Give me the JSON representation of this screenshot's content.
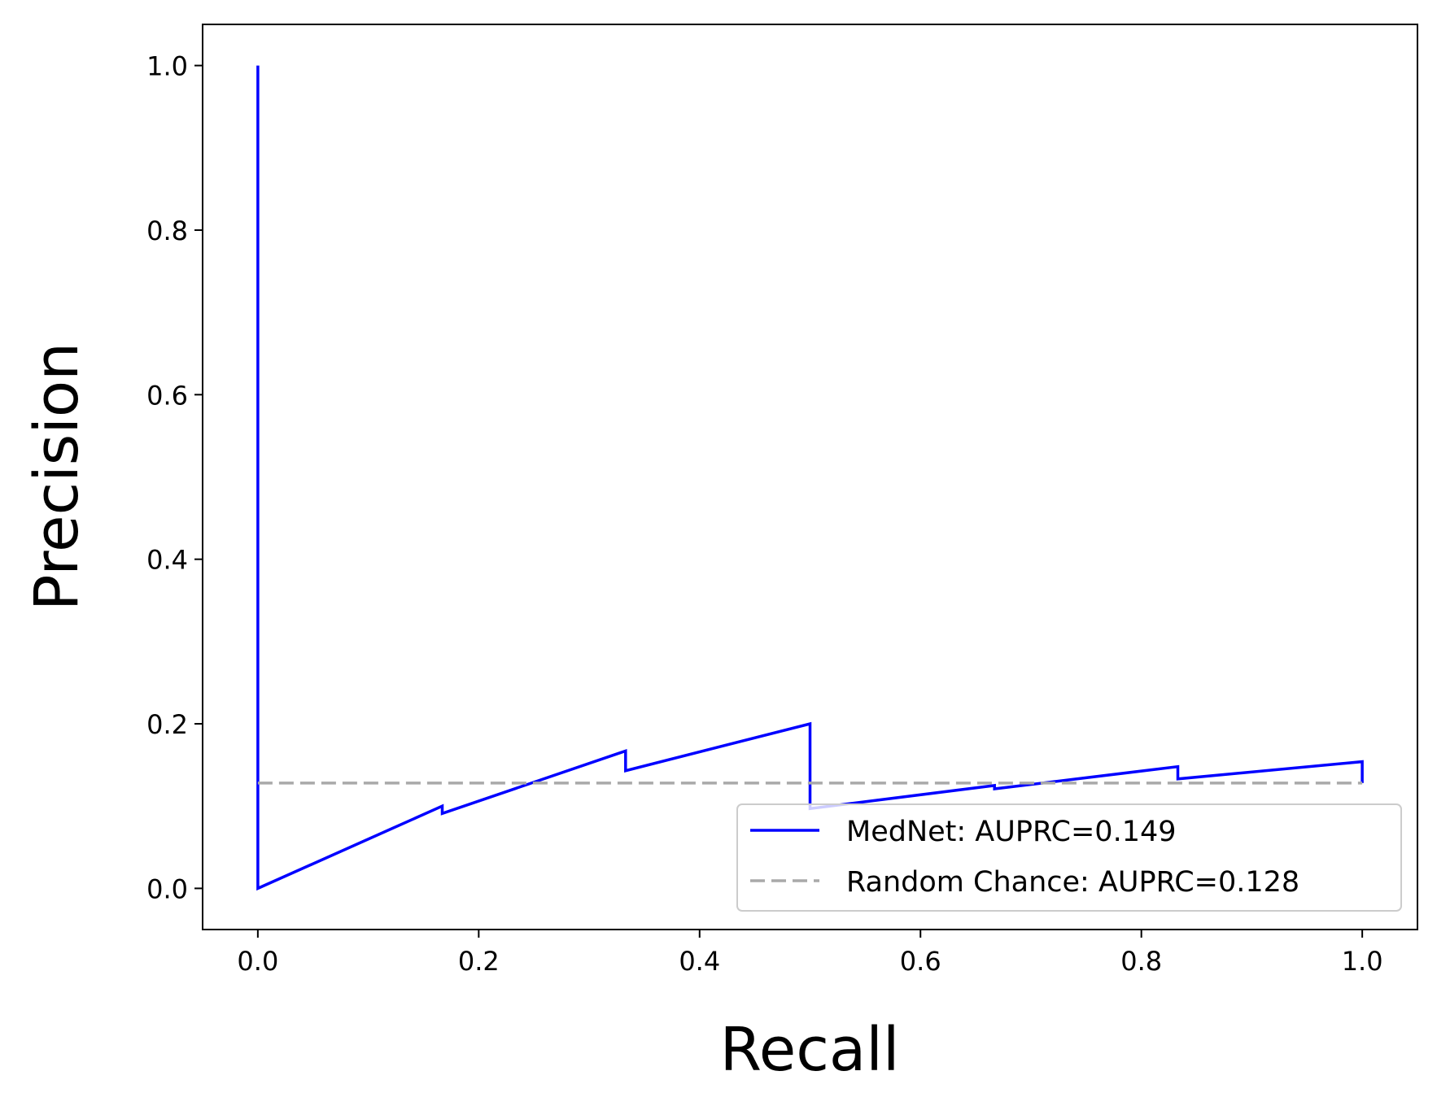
{
  "chart_data": {
    "type": "line",
    "title": "",
    "xlabel": "Recall",
    "ylabel": "Precision",
    "xlim": [
      -0.05,
      1.05
    ],
    "ylim": [
      -0.05,
      1.05
    ],
    "xticks": [
      "0.0",
      "0.2",
      "0.4",
      "0.6",
      "0.8",
      "1.0"
    ],
    "yticks": [
      "0.0",
      "0.2",
      "0.4",
      "0.6",
      "0.8",
      "1.0"
    ],
    "grid": false,
    "legend_position": "lower-right",
    "series": [
      {
        "name": "MedNet: AUPRC=0.149",
        "color": "#0000ff",
        "style": "solid",
        "x": [
          0.0,
          0.0,
          0.0,
          0.167,
          0.167,
          0.333,
          0.333,
          0.5,
          0.5,
          0.5,
          0.667,
          0.667,
          0.833,
          0.833,
          1.0,
          1.0
        ],
        "y": [
          1.0,
          0.128,
          0.0,
          0.1,
          0.091,
          0.167,
          0.143,
          0.2,
          0.111,
          0.097,
          0.125,
          0.121,
          0.148,
          0.133,
          0.154,
          0.128
        ]
      },
      {
        "name": "Random Chance: AUPRC=0.128",
        "color": "#a9a9a9",
        "style": "dashed",
        "x": [
          0.0,
          1.0
        ],
        "y": [
          0.128,
          0.128
        ]
      }
    ]
  }
}
